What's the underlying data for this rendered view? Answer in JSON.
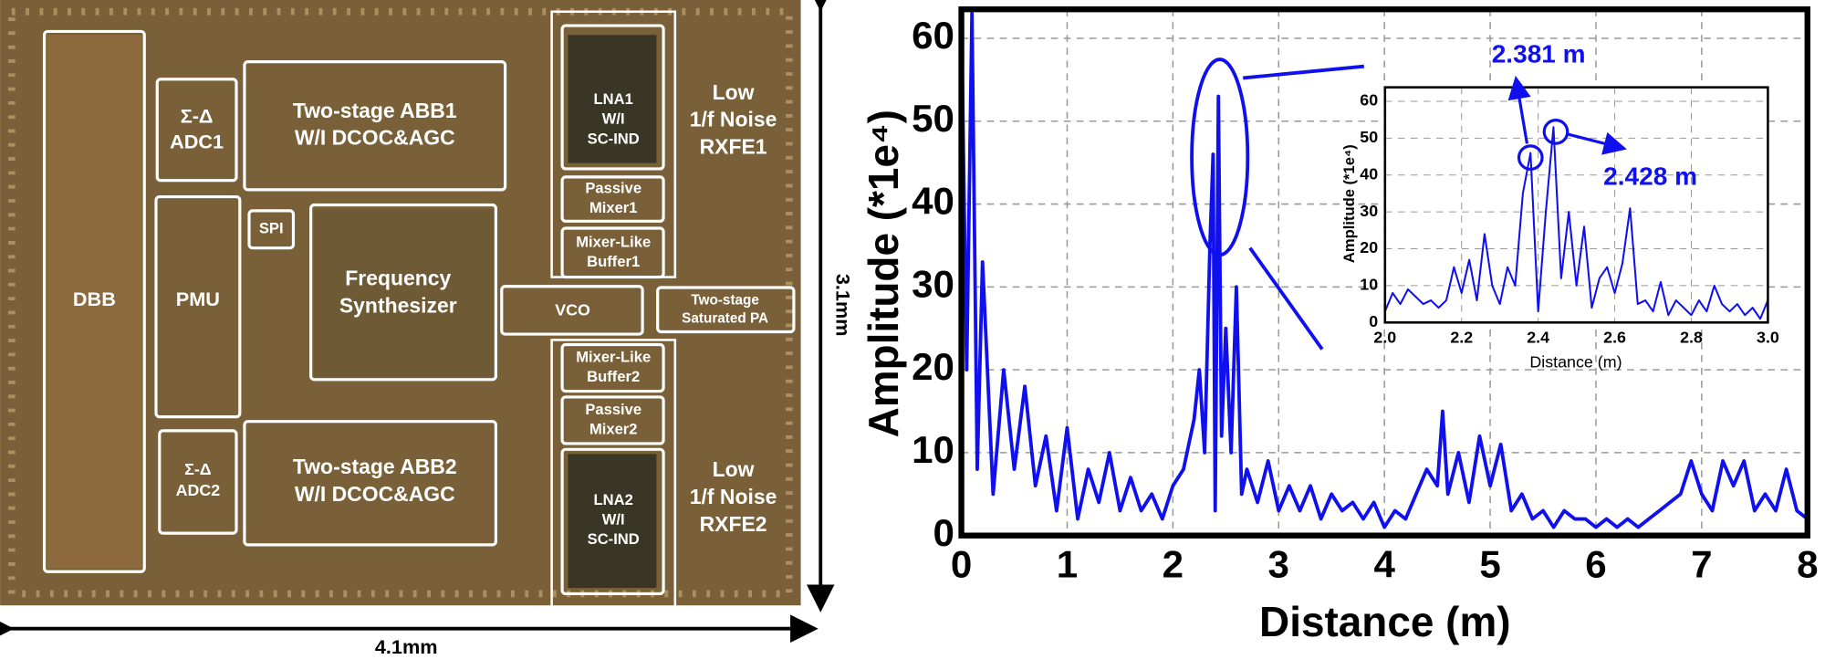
{
  "die_photo": {
    "blocks": [
      {
        "lines": [
          "DBB"
        ]
      },
      {
        "lines": [
          "Σ-Δ",
          "ADC1"
        ]
      },
      {
        "lines": [
          "Two-stage ABB1",
          "W/I DCOC&AGC"
        ]
      },
      {
        "lines": [
          "SPI"
        ]
      },
      {
        "lines": [
          "PMU"
        ]
      },
      {
        "lines": [
          "Frequency",
          "Synthesizer"
        ]
      },
      {
        "lines": [
          "Σ-Δ",
          "ADC2"
        ]
      },
      {
        "lines": [
          "Two-stage ABB2",
          "W/I DCOC&AGC"
        ]
      },
      {
        "lines": [
          "LNA1",
          "W/I",
          "SC-IND"
        ]
      },
      {
        "lines": [
          "Passive",
          "Mixer1"
        ]
      },
      {
        "lines": [
          "Mixer-Like",
          "Buffer1"
        ]
      },
      {
        "lines": [
          "VCO"
        ]
      },
      {
        "lines": [
          "Two-stage",
          "Saturated PA"
        ]
      },
      {
        "lines": [
          "Mixer-Like",
          "Buffer2"
        ]
      },
      {
        "lines": [
          "Passive",
          "Mixer2"
        ]
      },
      {
        "lines": [
          "LNA2",
          "W/I",
          "SC-IND"
        ]
      },
      {
        "lines": [
          "Low",
          "1/f Noise",
          "RXFE1"
        ]
      },
      {
        "lines": [
          "Low",
          "1/f Noise",
          "RXFE2"
        ]
      }
    ],
    "dimensions": {
      "height": "3.1mm",
      "width": "4.1mm"
    }
  },
  "chart_data": [
    {
      "type": "line",
      "x_label": "Distance (m)",
      "y_label": "Amplitude (*1e⁴)",
      "xlim": [
        0,
        8
      ],
      "xticks": [
        0,
        1,
        2,
        3,
        4,
        5,
        6,
        7,
        8
      ],
      "ylim": [
        0,
        63.5
      ],
      "yticks": [
        0,
        10,
        20,
        30,
        40,
        50,
        60
      ],
      "grid": true,
      "series": [
        {
          "color": "#1010ee",
          "x": [
            0,
            0.05,
            0.1,
            0.15,
            0.2,
            0.3,
            0.4,
            0.5,
            0.6,
            0.7,
            0.8,
            0.9,
            1.0,
            1.1,
            1.2,
            1.3,
            1.4,
            1.5,
            1.6,
            1.7,
            1.8,
            1.9,
            2.0,
            2.1,
            2.2,
            2.25,
            2.3,
            2.35,
            2.38,
            2.4,
            2.43,
            2.46,
            2.5,
            2.55,
            2.6,
            2.65,
            2.7,
            2.8,
            2.9,
            3.0,
            3.1,
            3.2,
            3.3,
            3.4,
            3.5,
            3.6,
            3.7,
            3.8,
            3.9,
            4.0,
            4.1,
            4.2,
            4.3,
            4.4,
            4.5,
            4.55,
            4.6,
            4.7,
            4.8,
            4.9,
            5.0,
            5.1,
            5.2,
            5.3,
            5.4,
            5.5,
            5.6,
            5.7,
            5.8,
            5.9,
            6.0,
            6.1,
            6.2,
            6.3,
            6.4,
            6.5,
            6.6,
            6.7,
            6.8,
            6.9,
            7.0,
            7.1,
            7.2,
            7.3,
            7.4,
            7.5,
            7.6,
            7.7,
            7.8,
            7.9,
            8.0
          ],
          "values": [
            63,
            20,
            63,
            8,
            33,
            5,
            20,
            8,
            18,
            6,
            12,
            3,
            13,
            2,
            8,
            4,
            10,
            3,
            7,
            3,
            5,
            2,
            6,
            8,
            14,
            20,
            10,
            35,
            46,
            3,
            53,
            12,
            25,
            10,
            30,
            5,
            8,
            4,
            9,
            3,
            6,
            3,
            6,
            2,
            5,
            3,
            4,
            2,
            4,
            1,
            3,
            2,
            5,
            8,
            6,
            15,
            5,
            10,
            4,
            12,
            6,
            11,
            3,
            5,
            2,
            3,
            1,
            3,
            2,
            2,
            1,
            2,
            1,
            2,
            1,
            2,
            3,
            4,
            5,
            9,
            5,
            3,
            9,
            6,
            9,
            3,
            5,
            3,
            8,
            3,
            2
          ]
        }
      ]
    },
    {
      "type": "line",
      "x_label": "Distance (m)",
      "y_label": "Amplitude (*1e⁴)",
      "xlim": [
        2,
        3
      ],
      "xticks": [
        {
          "value": 2,
          "label": "2.0"
        },
        2.2,
        2.4,
        2.6,
        2.8,
        {
          "value": 3,
          "label": "3.0"
        }
      ],
      "ylim": [
        0,
        63.8
      ],
      "yticks": [
        0,
        10,
        20,
        30,
        40,
        50,
        60
      ],
      "grid": true,
      "annotations": [
        "2.381 m",
        "2.428 m"
      ],
      "series": [
        {
          "color": "#1010ee",
          "x": [
            2.0,
            2.02,
            2.04,
            2.06,
            2.08,
            2.1,
            2.12,
            2.14,
            2.16,
            2.18,
            2.2,
            2.22,
            2.24,
            2.26,
            2.28,
            2.3,
            2.32,
            2.34,
            2.36,
            2.38,
            2.4,
            2.42,
            2.44,
            2.46,
            2.48,
            2.5,
            2.52,
            2.54,
            2.56,
            2.58,
            2.6,
            2.62,
            2.64,
            2.66,
            2.68,
            2.7,
            2.72,
            2.74,
            2.76,
            2.78,
            2.8,
            2.82,
            2.84,
            2.86,
            2.88,
            2.9,
            2.92,
            2.94,
            2.96,
            2.98,
            3.0
          ],
          "values": [
            3,
            8,
            5,
            9,
            7,
            5,
            6,
            4,
            6,
            15,
            8,
            17,
            6,
            24,
            10,
            5,
            15,
            10,
            35,
            46,
            3,
            30,
            53,
            12,
            30,
            10,
            26,
            4,
            12,
            15,
            8,
            16,
            31,
            5,
            6,
            3,
            11,
            2,
            6,
            4,
            2,
            6,
            3,
            10,
            5,
            3,
            5,
            2,
            4,
            1,
            6
          ]
        }
      ]
    }
  ]
}
